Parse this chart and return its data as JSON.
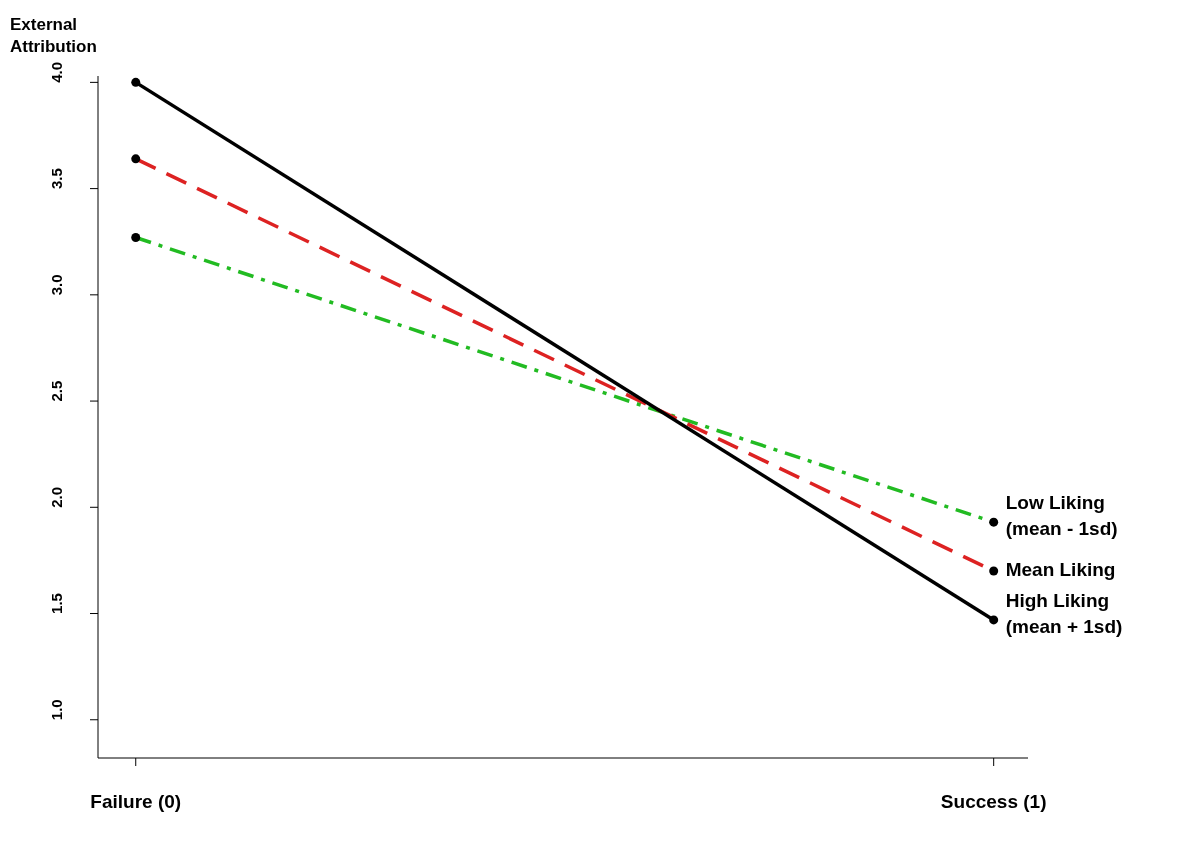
{
  "chart_data": {
    "type": "line",
    "ylabel": "External Attribution",
    "categories": [
      "Failure (0)",
      "Success (1)"
    ],
    "series": [
      {
        "name": "Low Liking (mean - 1sd)",
        "color": "#22bb22",
        "values": [
          3.27,
          1.93
        ],
        "line_style": "dashdot"
      },
      {
        "name": "Mean Liking",
        "color": "#dd2222",
        "values": [
          3.64,
          1.7
        ],
        "line_style": "dashed"
      },
      {
        "name": "High Liking (mean + 1sd)",
        "color": "#000000",
        "values": [
          4.0,
          1.47
        ],
        "line_style": "solid"
      }
    ],
    "ylim": [
      0.82,
      4.03
    ],
    "yticks": [
      {
        "value": 1,
        "label": "1.0"
      },
      1.5,
      {
        "value": 2,
        "label": "2.0"
      },
      2.5,
      {
        "value": 3,
        "label": "3.0"
      },
      3.5,
      {
        "value": 4,
        "label": "4.0"
      }
    ],
    "grid": false,
    "legend": false,
    "marker": "circle"
  }
}
